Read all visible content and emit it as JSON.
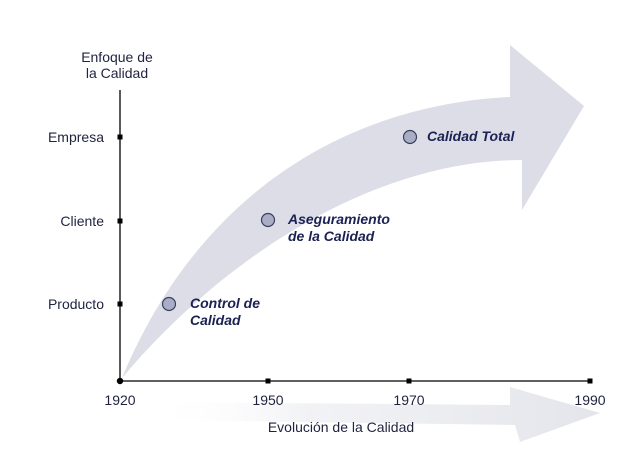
{
  "y_axis": {
    "title_lines": [
      "Enfoque de",
      "la Calidad"
    ],
    "categories": [
      "Producto",
      "Cliente",
      "Empresa"
    ]
  },
  "x_axis": {
    "title": "Evolución de la Calidad",
    "ticks": [
      "1920",
      "1950",
      "1970",
      "1990"
    ]
  },
  "stages": [
    {
      "lines": [
        "Control de",
        "Calidad"
      ],
      "year": 1927,
      "level": "Producto"
    },
    {
      "lines": [
        "Aseguramiento",
        "de la Calidad"
      ],
      "year": 1950,
      "level": "Cliente"
    },
    {
      "lines": [
        "Calidad Total"
      ],
      "year": 1970,
      "level": "Empresa"
    }
  ],
  "colors": {
    "arrow": "#dcdde6",
    "bottom_arrow": "#e9eaef",
    "marker_fill": "#a9aec6",
    "marker_stroke": "#3a3f5c",
    "axis": "#000000",
    "text": "#1f2340",
    "stage_text": "#1b2152"
  }
}
